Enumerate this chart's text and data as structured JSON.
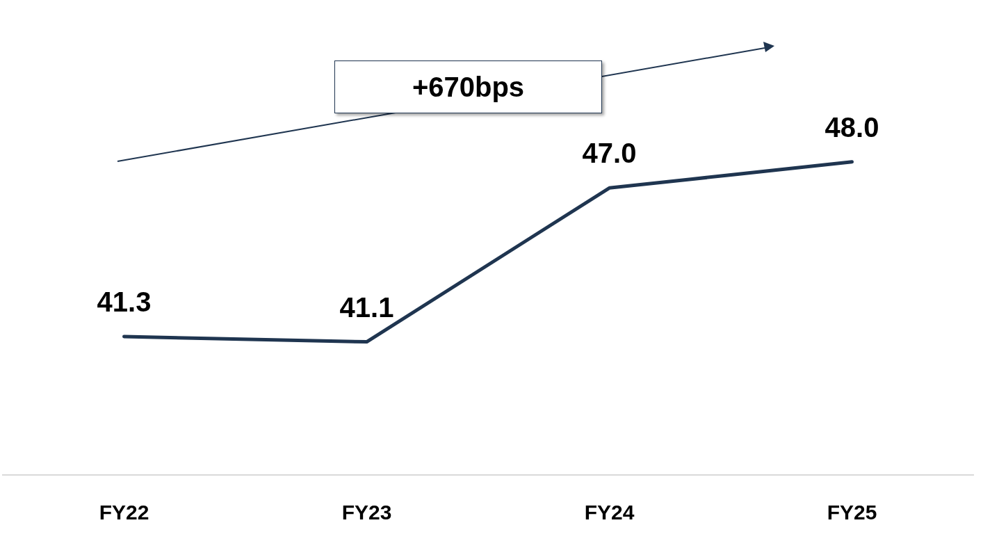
{
  "chart_data": {
    "type": "line",
    "categories": [
      "FY22",
      "FY23",
      "FY24",
      "FY25"
    ],
    "series": [
      {
        "color": "#1f3550",
        "values": [
          41.3,
          41.1,
          47.0,
          48.0
        ],
        "value_labels": [
          "41.3",
          "41.1",
          "47.0",
          "48.0"
        ]
      }
    ],
    "annotations": [
      "+670bps"
    ],
    "marker": "none",
    "grid": false,
    "legend": false,
    "tick_labels": "x"
  }
}
